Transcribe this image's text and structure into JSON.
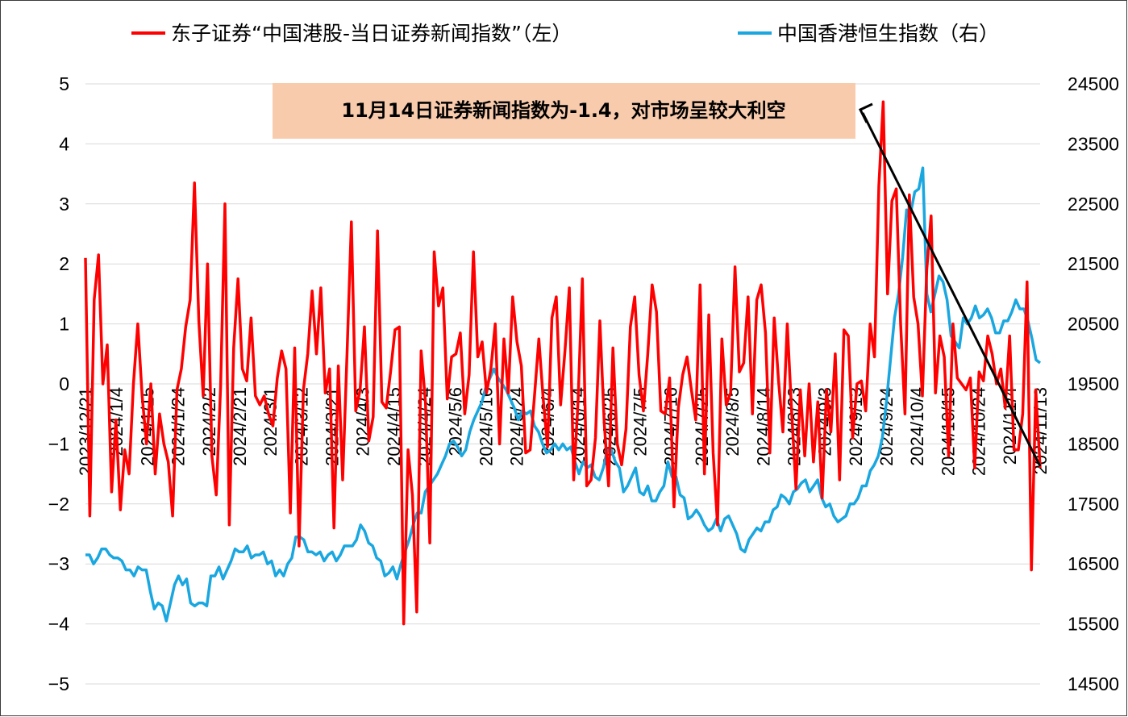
{
  "chart_data": {
    "type": "line",
    "title": "",
    "legend": {
      "position": "top",
      "entries": [
        {
          "label": "东子证券“中国港股-当日证券新闻指数”（左）",
          "color": "#ff0000"
        },
        {
          "label": "中国香港恒生指数（右）",
          "color": "#1aa7e0"
        }
      ]
    },
    "annotation": {
      "text": "11月14日证券新闻指数为-1.4，对市场呈较大利空",
      "background": "#f8cbad"
    },
    "y_left": {
      "range": [
        -5,
        5
      ],
      "ticks": [
        "5",
        "4",
        "3",
        "2",
        "1",
        "0",
        "−1",
        "−2",
        "−3",
        "−4",
        "−5"
      ]
    },
    "y_right": {
      "range": [
        14500,
        24500
      ],
      "ticks": [
        "24500",
        "23500",
        "22500",
        "21500",
        "20500",
        "19500",
        "18500",
        "17500",
        "16500",
        "15500",
        "14500"
      ]
    },
    "x_labels": [
      "2023/12/21",
      "2024/1/4",
      "2024/1/15",
      "2024/1/24",
      "2024/2/2",
      "2024/2/21",
      "2024/3/1",
      "2024/3/12",
      "2024/3/21",
      "2024/4/3",
      "2024/4/15",
      "2024/4/24",
      "2024/5/6",
      "2024/5/16",
      "2024/5/24",
      "2024/6/4",
      "2024/6/14",
      "2024/6/25",
      "2024/7/5",
      "2024/7/16",
      "2024/7/25",
      "2024/8/5",
      "2024/8/14",
      "2024/8/23",
      "2024/9/3",
      "2024/9/13",
      "2024/9/24",
      "2024/10/4",
      "2024/10/15",
      "2024/10/24",
      "2024/11/4",
      "2024/11/13"
    ],
    "grid": true,
    "series": [
      {
        "name": "东子证券“中国港股-当日证券新闻指数”（左）",
        "axis": "left",
        "color": "#ff0000",
        "values": [
          2.1,
          -2.2,
          1.4,
          2.15,
          0,
          0.65,
          -1.8,
          -0.6,
          -2.1,
          -1.1,
          -1.5,
          0,
          1.0,
          -0.2,
          -1,
          0,
          -1.5,
          -0.5,
          -1,
          -1.3,
          -2.2,
          -0.1,
          0.25,
          0.95,
          1.4,
          3.35,
          1.05,
          -0.2,
          2.0,
          -1.2,
          -1.85,
          -0.05,
          3.0,
          -2.35,
          0.6,
          1.75,
          0.25,
          0.05,
          1.1,
          -0.2,
          -0.35,
          -0.2,
          -0.5,
          -0.7,
          0.1,
          0.55,
          0.25,
          -2.15,
          0.6,
          -2.7,
          -0.1,
          0.5,
          1.55,
          0.5,
          1.6,
          -0.15,
          0.25,
          -2.4,
          0.3,
          -1.6,
          0.5,
          2.7,
          -0.45,
          -0.1,
          0.95,
          -0.95,
          -0.55,
          2.55,
          -0.3,
          -0.4,
          0.2,
          0.9,
          0.95,
          -4.0,
          -1.1,
          -1.85,
          -3.8,
          0.55,
          -0.3,
          -2.65,
          2.2,
          1.3,
          1.6,
          -0.25,
          0.45,
          0.5,
          0.85,
          -0.5,
          0.15,
          2.2,
          0.45,
          0.7,
          -0.15,
          0.25,
          1.0,
          -1.0,
          0.75,
          -0.15,
          1.45,
          0.7,
          0.3,
          -1.15,
          -1.1,
          -0.2,
          0.75,
          -0.25,
          -1.05,
          1.1,
          1.45,
          -0.35,
          0.55,
          1.6,
          -1.6,
          -0.3,
          1.75,
          -1.7,
          -1.6,
          -0.9,
          1.05,
          -0.65,
          -1.7,
          0.6,
          -1.0,
          -1.35,
          -0.75,
          0.95,
          1.45,
          0.15,
          -0.45,
          0.5,
          1.65,
          1.2,
          -0.45,
          -0.5,
          0.1,
          -2.05,
          -0.4,
          0.15,
          0.45,
          -0.1,
          -0.6,
          1.65,
          -1.5,
          1.15,
          -1.15,
          -2.35,
          0.75,
          -0.35,
          -0.15,
          1.95,
          0.2,
          0.35,
          1.45,
          -0.5,
          1.4,
          1.65,
          0.85,
          -1.15,
          1.1,
          0.05,
          -0.8,
          1.0,
          -0.45,
          -1.75,
          -0.1,
          -1.2,
          0,
          -1.3,
          -0.3,
          -1.9,
          -0.1,
          -0.8,
          0.5,
          -1.6,
          0.9,
          0.8,
          -0.9,
          0,
          0.05,
          -0.45,
          1.0,
          0.45,
          3.3,
          4.7,
          1.5,
          3.05,
          3.25,
          1.0,
          -0.5,
          3.15,
          1.45,
          1.0,
          -0.2,
          1.9,
          2.8,
          -0.15,
          0.8,
          0.45,
          -1.2,
          1.0,
          0.1,
          0,
          -0.1,
          0.1,
          -1.4,
          0.2,
          0.05,
          0.8,
          0.5,
          0,
          0.25,
          -0.4,
          0.8,
          -1.1,
          -1.1,
          -0.5,
          1.7,
          -3.1,
          -0.1,
          -1.4
        ]
      },
      {
        "name": "中国香港恒生指数（右）",
        "axis": "right",
        "color": "#1aa7e0",
        "values": [
          16650,
          16650,
          16500,
          16600,
          16750,
          16750,
          16650,
          16600,
          16600,
          16550,
          16400,
          16400,
          16300,
          16450,
          16400,
          16400,
          16050,
          15750,
          15850,
          15800,
          15550,
          15850,
          16150,
          16300,
          16150,
          16250,
          15850,
          15800,
          15850,
          15850,
          15800,
          16300,
          16300,
          16450,
          16250,
          16400,
          16550,
          16750,
          16700,
          16700,
          16800,
          16600,
          16650,
          16650,
          16700,
          16500,
          16550,
          16300,
          16400,
          16300,
          16500,
          16600,
          16950,
          16950,
          16900,
          16700,
          16700,
          16650,
          16700,
          16550,
          16650,
          16700,
          16550,
          16650,
          16800,
          16800,
          16800,
          16900,
          17150,
          17050,
          16850,
          16800,
          16600,
          16550,
          16300,
          16350,
          16450,
          16250,
          16500,
          16700,
          16900,
          17150,
          17350,
          17350,
          17700,
          17800,
          17900,
          18000,
          18150,
          18300,
          18500,
          18550,
          18450,
          18300,
          18400,
          18700,
          18900,
          19050,
          19200,
          19450,
          19600,
          19750,
          19600,
          19500,
          19400,
          19250,
          19100,
          18900,
          19050,
          19000,
          19050,
          18800,
          18700,
          18500,
          18350,
          18400,
          18500,
          18400,
          18500,
          18400,
          18450,
          18200,
          18000,
          18200,
          18100,
          18150,
          17950,
          17900,
          18100,
          18400,
          18400,
          18200,
          18100,
          17700,
          17800,
          17950,
          18100,
          17700,
          17650,
          17800,
          17550,
          17550,
          17700,
          17800,
          18200,
          17950,
          17950,
          17650,
          17600,
          17250,
          17300,
          17400,
          17300,
          17150,
          17050,
          17100,
          17250,
          17050,
          17250,
          17300,
          17150,
          17000,
          16750,
          16700,
          16900,
          17000,
          17100,
          17050,
          17200,
          17200,
          17400,
          17450,
          17650,
          17600,
          17500,
          17700,
          17750,
          17850,
          17900,
          17700,
          17800,
          17900,
          17600,
          17450,
          17500,
          17300,
          17200,
          17250,
          17300,
          17500,
          17500,
          17600,
          17800,
          17800,
          18050,
          18150,
          18300,
          18600,
          19200,
          19900,
          20600,
          21000,
          21600,
          22400,
          22350,
          22700,
          22750,
          23100,
          21000,
          20700,
          21000,
          21300,
          21200,
          20900,
          20300,
          20200,
          20100,
          20600,
          20500,
          20600,
          20800,
          20600,
          20650,
          20750,
          20600,
          20350,
          20350,
          20550,
          20550,
          20700,
          20900,
          20750,
          20750,
          20550,
          20250,
          19900,
          19850
        ]
      }
    ]
  }
}
